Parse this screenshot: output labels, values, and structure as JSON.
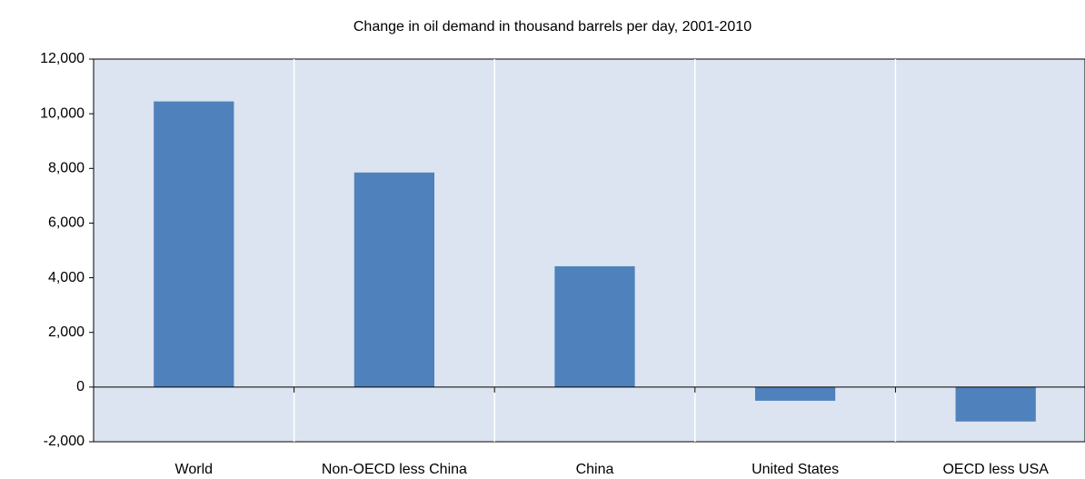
{
  "chart_data": {
    "type": "bar",
    "title": "Change in oil demand in thousand barrels per day, 2001-2010",
    "categories": [
      "World",
      "Non-OECD less China",
      "China",
      "United States",
      "OECD less USA"
    ],
    "values": [
      10450,
      7850,
      4420,
      -500,
      -1260
    ],
    "color": "#4f81bd",
    "ylim": [
      -2000,
      12000
    ],
    "yticks": [
      {
        "value": -2000,
        "label": "-2,000"
      },
      0,
      {
        "value": 2000,
        "label": "2,000"
      },
      {
        "value": 4000,
        "label": "4,000"
      },
      {
        "value": 6000,
        "label": "6,000"
      },
      {
        "value": 8000,
        "label": "8,000"
      },
      {
        "value": 10000,
        "label": "10,000"
      },
      {
        "value": 12000,
        "label": "12,000"
      }
    ],
    "grid": true
  }
}
